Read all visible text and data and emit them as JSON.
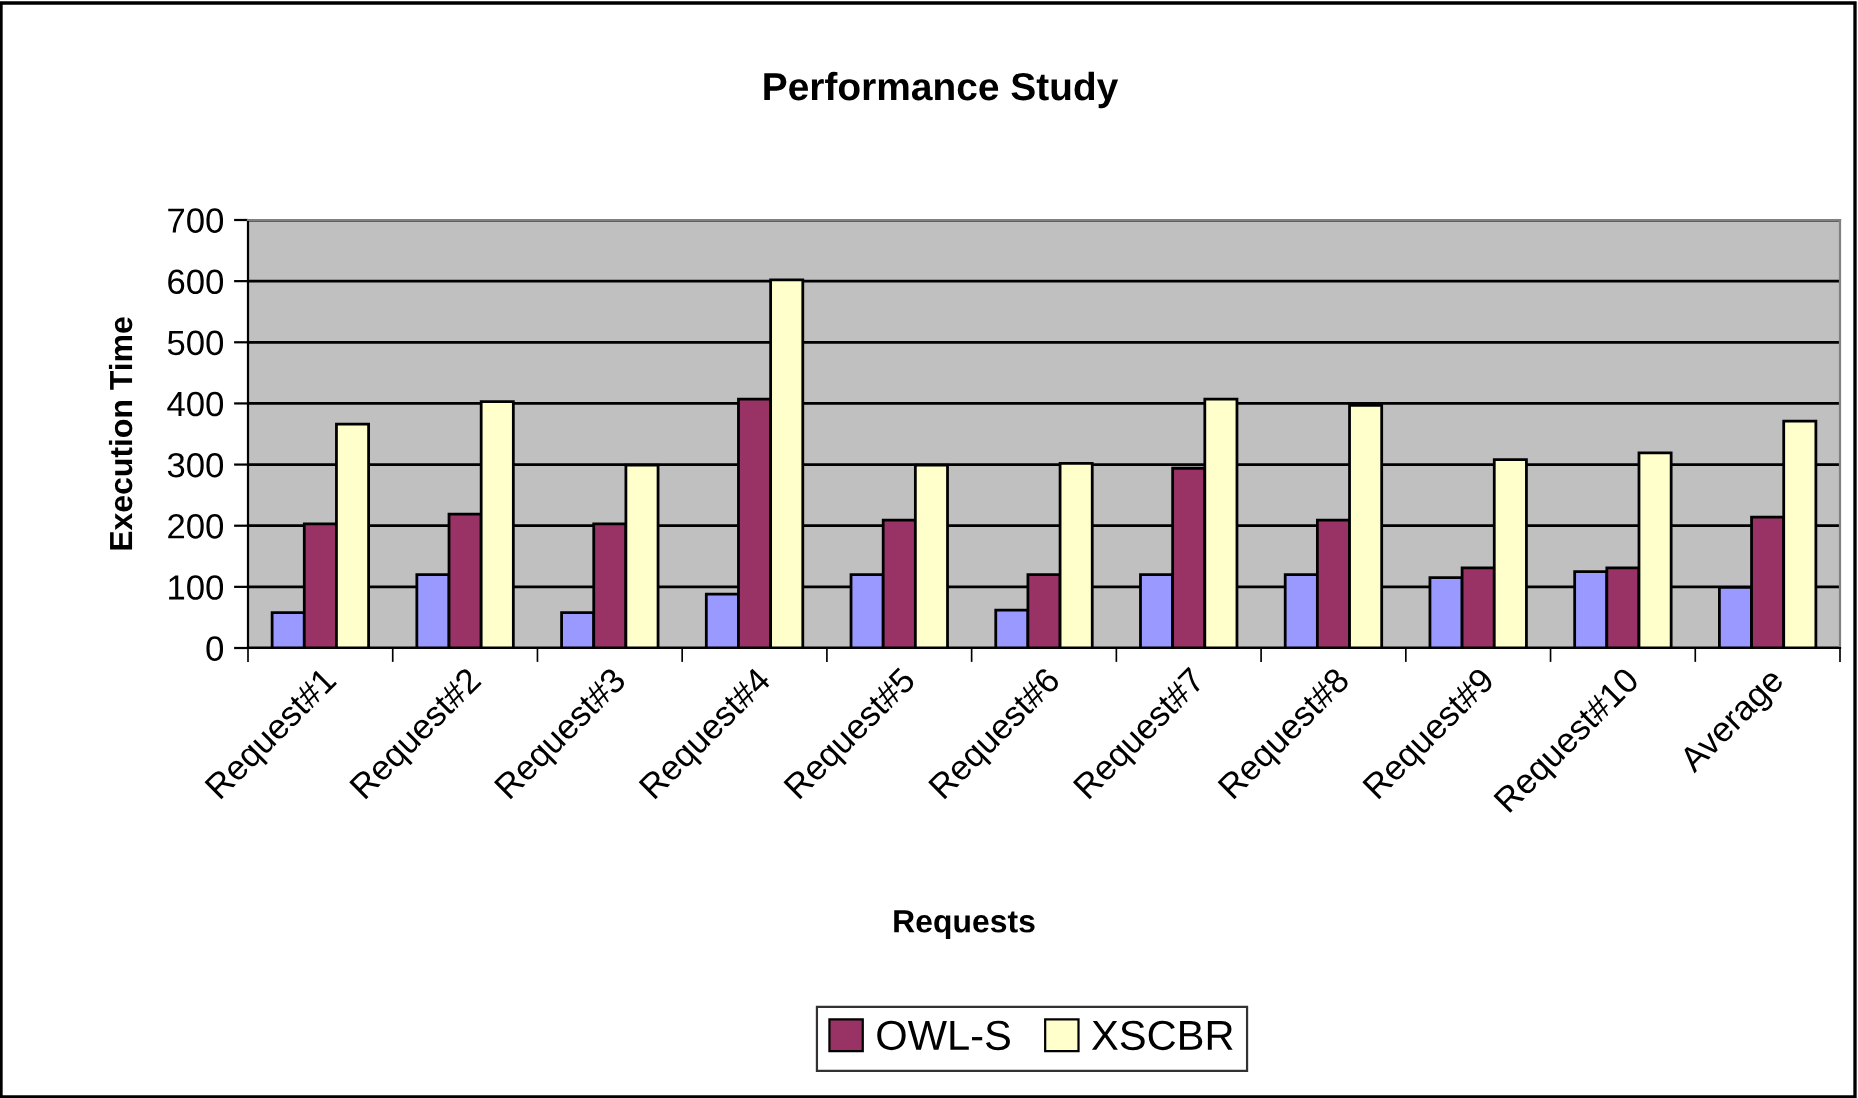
{
  "chart_data": {
    "type": "bar",
    "title": "Performance Study",
    "xlabel": "Requests",
    "ylabel": "Execution Time",
    "categories": [
      "Request#1",
      "Request#2",
      "Request#3",
      "Request#4",
      "Request#5",
      "Request#6",
      "Request#7",
      "Request#8",
      "Request#9",
      "Request#10",
      "Average"
    ],
    "series": [
      {
        "color": "#9999ff",
        "values": [
          58,
          120,
          58,
          88,
          120,
          62,
          120,
          120,
          115,
          125,
          99
        ]
      },
      {
        "name": "OWL-S",
        "color": "#993366",
        "values": [
          203,
          219,
          203,
          407,
          209,
          120,
          294,
          209,
          131,
          131,
          214
        ]
      },
      {
        "name": "XSCBR",
        "color": "#ffffcc",
        "values": [
          366,
          403,
          299,
          602,
          299,
          302,
          407,
          397,
          308,
          319,
          371
        ]
      }
    ],
    "ylim": [
      0,
      700
    ],
    "yticks": [
      0,
      100,
      200,
      300,
      400,
      500,
      600,
      700
    ],
    "grid": "y",
    "legend": "bottom"
  }
}
